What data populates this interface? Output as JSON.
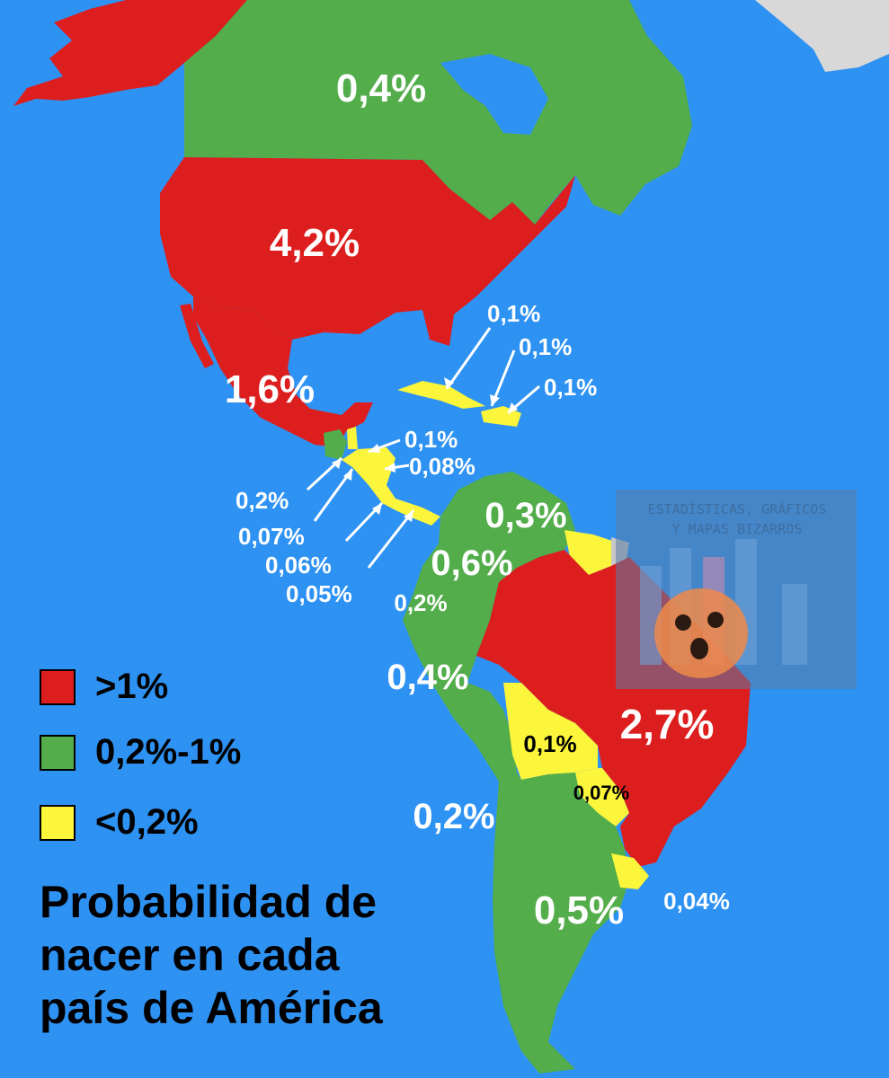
{
  "title": "Probabilidad de nacer en cada país de América",
  "title_lines": [
    "Probabilidad de",
    "nacer en cada",
    "país de América"
  ],
  "legend": [
    {
      "label": ">1%",
      "color": "#dd1e1e"
    },
    {
      "label": "0,2%-1%",
      "color": "#52ad4a"
    },
    {
      "label": "<0,2%",
      "color": "#fbf53b"
    }
  ],
  "colors": {
    "ocean": "#2e92f3",
    "high": "#dd1e1e",
    "mid": "#52ad4a",
    "low": "#fbf53b",
    "other": "#c8c8c8"
  },
  "watermark": {
    "line1": "ESTADÍSTICAS, GRÁFICOS",
    "line2": "Y MAPAS BIZARROS"
  },
  "countries": [
    {
      "name": "Canadá",
      "value": "0,4%",
      "category": "0,2%-1%"
    },
    {
      "name": "Estados Unidos",
      "value": "4,2%",
      "category": ">1%"
    },
    {
      "name": "México",
      "value": "1,6%",
      "category": ">1%"
    },
    {
      "name": "Guatemala",
      "value": "0,2%",
      "category": "0,2%-1%"
    },
    {
      "name": "Belice",
      "value": "0,1%",
      "category": "<0,2%"
    },
    {
      "name": "Honduras",
      "value": "0,08%",
      "category": "<0,2%"
    },
    {
      "name": "El Salvador",
      "value": "0,07%",
      "category": "<0,2%"
    },
    {
      "name": "Nicaragua",
      "value": "0,06%",
      "category": "<0,2%"
    },
    {
      "name": "Costa Rica",
      "value": "0,05%",
      "category": "<0,2%"
    },
    {
      "name": "Cuba",
      "value": "0,1%",
      "category": "<0,2%"
    },
    {
      "name": "Haití",
      "value": "0,1%",
      "category": "<0,2%"
    },
    {
      "name": "República Dominicana",
      "value": "0,1%",
      "category": "<0,2%"
    },
    {
      "name": "Venezuela",
      "value": "0,3%",
      "category": "0,2%-1%"
    },
    {
      "name": "Colombia",
      "value": "0,6%",
      "category": "0,2%-1%"
    },
    {
      "name": "Ecuador",
      "value": "0,2%",
      "category": "0,2%-1%"
    },
    {
      "name": "Perú",
      "value": "0,4%",
      "category": "0,2%-1%"
    },
    {
      "name": "Brasil",
      "value": "2,7%",
      "category": ">1%"
    },
    {
      "name": "Bolivia",
      "value": "0,1%",
      "category": "<0,2%"
    },
    {
      "name": "Paraguay",
      "value": "0,07%",
      "category": "<0,2%"
    },
    {
      "name": "Chile",
      "value": "0,2%",
      "category": "0,2%-1%"
    },
    {
      "name": "Argentina",
      "value": "0,5%",
      "category": "0,2%-1%"
    },
    {
      "name": "Uruguay",
      "value": "0,04%",
      "category": "<0,2%"
    }
  ]
}
